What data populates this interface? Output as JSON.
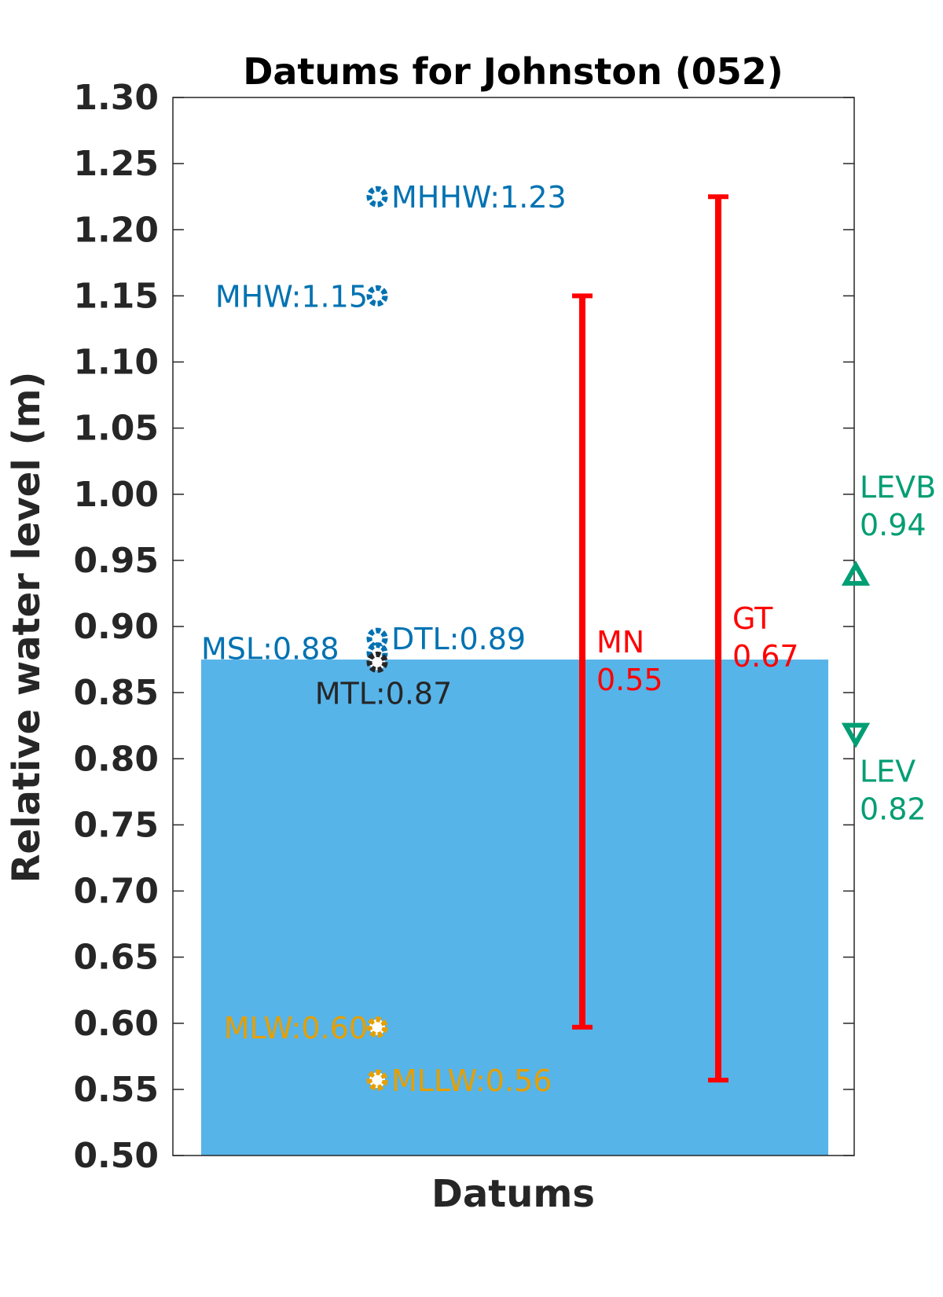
{
  "chart_data": {
    "type": "datum-plot",
    "title": "Datums for Johnston (052)",
    "xlabel": "Datums",
    "ylabel": "Relative water level (m)",
    "ylim": [
      0.5,
      1.3
    ],
    "yticks": [
      "0.50",
      "0.55",
      "0.60",
      "0.65",
      "0.70",
      "0.75",
      "0.80",
      "0.85",
      "0.90",
      "0.95",
      "1.00",
      "1.05",
      "1.10",
      "1.15",
      "1.20",
      "1.25",
      "1.30"
    ],
    "msl_fill": {
      "value": 0.875,
      "color": "#56b4e9"
    },
    "datums": [
      {
        "label": "MHHW:1.23",
        "value": 1.225,
        "color": "#0072b2",
        "side": "right"
      },
      {
        "label": "MHW:1.15",
        "value": 1.15,
        "color": "#0072b2",
        "side": "left"
      },
      {
        "label": "DTL:0.89",
        "value": 0.891,
        "color": "#0072b2",
        "side": "right"
      },
      {
        "label": "MSL:0.88",
        "value": 0.88,
        "color": "#0072b2",
        "side": "left-above"
      },
      {
        "label": "MTL:0.87",
        "value": 0.873,
        "color": "#262626",
        "side": "below"
      },
      {
        "label": "MLW:0.60",
        "value": 0.597,
        "color": "#e69f00",
        "side": "left"
      },
      {
        "label": "MLLW:0.56",
        "value": 0.557,
        "color": "#e69f00",
        "side": "right"
      }
    ],
    "ranges": [
      {
        "name": "MN",
        "value_text": "0.55",
        "low": 0.597,
        "high": 1.15,
        "color": "#ff0000"
      },
      {
        "name": "GT",
        "value_text": "0.67",
        "low": 0.557,
        "high": 1.225,
        "color": "#ff0000"
      }
    ],
    "levels": [
      {
        "name": "LEVB",
        "value_text": "0.94",
        "value": 0.938,
        "marker": "triangle-up",
        "color": "#009e73"
      },
      {
        "name": "LEV",
        "value_text": "0.82",
        "value": 0.82,
        "marker": "triangle-down",
        "color": "#009e73"
      }
    ]
  }
}
